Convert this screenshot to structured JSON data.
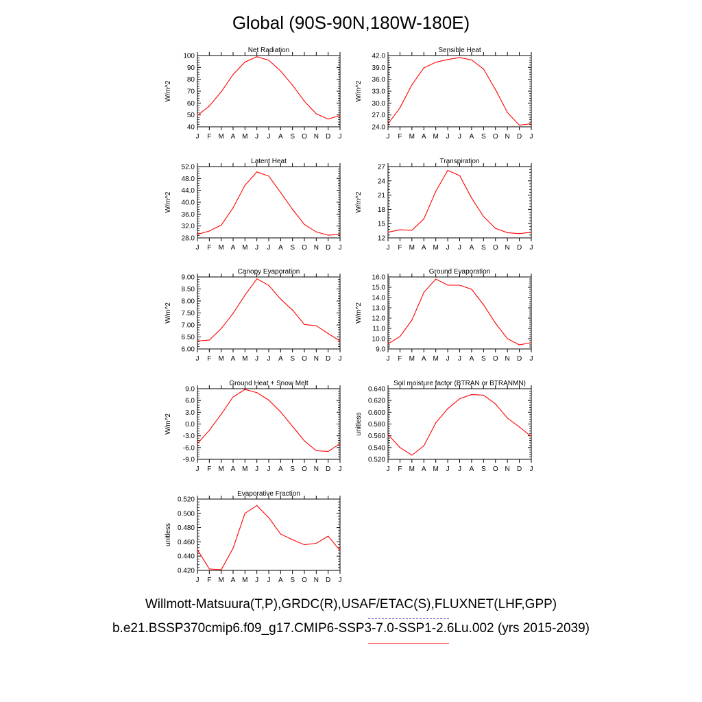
{
  "title": "Global (90S-90N,180W-180E)",
  "legend": {
    "observations": "Willmott-Matsuura(T,P),GRDC(R),USAF/ETAC(S),FLUXNET(LHF,GPP)",
    "model": "b.e21.BSSP370cmip6.f09_g17.CMIP6-SSP3-7.0-SSP1-2.6Lu.002 (yrs 2015-2039)"
  },
  "colors": {
    "model_line": "#ff0000",
    "observations_line": "#5a5ae0"
  },
  "chart_data": [
    {
      "type": "line",
      "title": "Net Radiation",
      "ylabel": "W/m^2",
      "categories": [
        "J",
        "F",
        "M",
        "A",
        "M",
        "J",
        "J",
        "A",
        "S",
        "O",
        "N",
        "D",
        "J"
      ],
      "ylim": [
        40,
        100
      ],
      "yticks": [
        "40",
        "50",
        "60",
        "70",
        "80",
        "90",
        "100"
      ],
      "values": [
        49.5,
        57.5,
        69.5,
        84,
        94.5,
        99,
        96,
        87,
        75,
        61.5,
        51,
        46.5,
        49.5
      ]
    },
    {
      "type": "line",
      "title": "Sensible Heat",
      "ylabel": "W/m^2",
      "categories": [
        "J",
        "F",
        "M",
        "A",
        "M",
        "J",
        "J",
        "A",
        "S",
        "O",
        "N",
        "D",
        "J"
      ],
      "ylim": [
        24,
        42
      ],
      "yticks": [
        "24.0",
        "27.0",
        "30.0",
        "33.0",
        "36.0",
        "39.0",
        "42.0"
      ],
      "values": [
        24.8,
        28.8,
        34.6,
        38.9,
        40.3,
        41.0,
        41.5,
        40.9,
        38.6,
        33.4,
        27.6,
        24.4,
        24.8
      ]
    },
    {
      "type": "line",
      "title": "Latent Heat",
      "ylabel": "W/m^2",
      "categories": [
        "J",
        "F",
        "M",
        "A",
        "M",
        "J",
        "J",
        "A",
        "S",
        "O",
        "N",
        "D",
        "J"
      ],
      "ylim": [
        28,
        52
      ],
      "yticks": [
        "28.0",
        "32.0",
        "36.0",
        "40.0",
        "44.0",
        "48.0",
        "52.0"
      ],
      "values": [
        29.2,
        30.3,
        32.3,
        38.1,
        45.7,
        50.2,
        48.8,
        43.3,
        37.6,
        32.5,
        30.0,
        28.9,
        29.2
      ]
    },
    {
      "type": "line",
      "title": "Transpiration",
      "ylabel": "W/m^2",
      "categories": [
        "J",
        "F",
        "M",
        "A",
        "M",
        "J",
        "J",
        "A",
        "S",
        "O",
        "N",
        "D",
        "J"
      ],
      "ylim": [
        12,
        27
      ],
      "yticks": [
        "12",
        "15",
        "18",
        "21",
        "24",
        "27"
      ],
      "values": [
        13.2,
        13.7,
        13.6,
        16.0,
        21.8,
        26.2,
        25.1,
        20.4,
        16.5,
        14.0,
        13.1,
        12.9,
        13.2
      ]
    },
    {
      "type": "line",
      "title": "Canopy Evaporation",
      "ylabel": "W/m^2",
      "categories": [
        "J",
        "F",
        "M",
        "A",
        "M",
        "J",
        "J",
        "A",
        "S",
        "O",
        "N",
        "D",
        "J"
      ],
      "ylim": [
        6,
        9
      ],
      "yticks": [
        "6.00",
        "6.50",
        "7.00",
        "7.50",
        "8.00",
        "8.50",
        "9.00"
      ],
      "values": [
        6.33,
        6.37,
        6.85,
        7.48,
        8.24,
        8.92,
        8.65,
        8.08,
        7.62,
        7.02,
        6.97,
        6.64,
        6.33
      ]
    },
    {
      "type": "line",
      "title": "Ground Evaporation",
      "ylabel": "W/m^2",
      "categories": [
        "J",
        "F",
        "M",
        "A",
        "M",
        "J",
        "J",
        "A",
        "S",
        "O",
        "N",
        "D",
        "J"
      ],
      "ylim": [
        9,
        16
      ],
      "yticks": [
        "9.0",
        "10.0",
        "11.0",
        "12.0",
        "13.0",
        "14.0",
        "15.0",
        "16.0"
      ],
      "values": [
        9.5,
        10.2,
        11.8,
        14.5,
        15.8,
        15.2,
        15.2,
        14.8,
        13.3,
        11.5,
        10.0,
        9.4,
        9.6
      ]
    },
    {
      "type": "line",
      "title": "Ground Heat + Snow Melt",
      "ylabel": "W/m^2",
      "categories": [
        "J",
        "F",
        "M",
        "A",
        "M",
        "J",
        "J",
        "A",
        "S",
        "O",
        "N",
        "D",
        "J"
      ],
      "ylim": [
        -9,
        9
      ],
      "yticks": [
        "-9.0",
        "-6.0",
        "-3.0",
        "0.0",
        "3.0",
        "6.0",
        "9.0"
      ],
      "values": [
        -5.0,
        -1.6,
        2.5,
        6.9,
        8.8,
        8.0,
        6.1,
        3.1,
        -0.6,
        -4.3,
        -6.8,
        -7.0,
        -5.0
      ]
    },
    {
      "type": "line",
      "title": "Soil moisture factor (BTRAN or BTRANMN)",
      "ylabel": "unitless",
      "categories": [
        "J",
        "F",
        "M",
        "A",
        "M",
        "J",
        "J",
        "A",
        "S",
        "O",
        "N",
        "D",
        "J"
      ],
      "ylim": [
        0.52,
        0.64
      ],
      "yticks": [
        "0.520",
        "0.540",
        "0.560",
        "0.580",
        "0.600",
        "0.620",
        "0.640"
      ],
      "values": [
        0.562,
        0.54,
        0.527,
        0.543,
        0.582,
        0.606,
        0.623,
        0.63,
        0.629,
        0.614,
        0.59,
        0.575,
        0.559
      ]
    },
    {
      "type": "line",
      "title": "Evaporative Fraction",
      "ylabel": "unitless",
      "categories": [
        "J",
        "F",
        "M",
        "A",
        "M",
        "J",
        "J",
        "A",
        "S",
        "O",
        "N",
        "D",
        "J"
      ],
      "ylim": [
        0.42,
        0.52
      ],
      "yticks": [
        "0.420",
        "0.440",
        "0.460",
        "0.480",
        "0.500",
        "0.520"
      ],
      "values": [
        0.449,
        0.422,
        0.421,
        0.451,
        0.5,
        0.511,
        0.494,
        0.471,
        0.463,
        0.456,
        0.458,
        0.468,
        0.448
      ]
    }
  ]
}
